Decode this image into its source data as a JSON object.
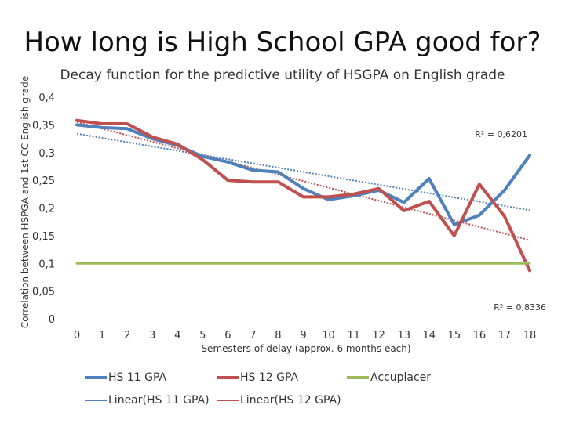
{
  "page": {
    "title": "How long is High School GPA good for?"
  },
  "chart_data": {
    "type": "line",
    "title": "Decay function for the predictive utility of HSGPA on English grade",
    "xlabel": "Semesters of delay (approx. 6 months each)",
    "ylabel": "Correlation between HSPGA and 1st CC English grade",
    "ylim": [
      0,
      0.4
    ],
    "xlim": [
      0,
      18
    ],
    "y_ticks": [
      "0",
      "0,05",
      "0,1",
      "0,15",
      "0,2",
      "0,25",
      "0,3",
      "0,35",
      "0,4"
    ],
    "x": [
      0,
      1,
      2,
      3,
      4,
      5,
      6,
      7,
      8,
      9,
      10,
      11,
      12,
      13,
      14,
      15,
      16,
      17,
      18
    ],
    "series": [
      {
        "name": "HS 11 GPA",
        "color": "#4f81bd",
        "values": [
          0.35,
          0.345,
          0.343,
          0.325,
          0.313,
          0.293,
          0.283,
          0.268,
          0.265,
          0.235,
          0.215,
          0.222,
          0.232,
          0.21,
          0.253,
          0.17,
          0.187,
          0.232,
          0.295
        ]
      },
      {
        "name": "HS 12 GPA",
        "color": "#c0504d",
        "values": [
          0.358,
          0.352,
          0.352,
          0.328,
          0.315,
          0.287,
          0.25,
          0.247,
          0.247,
          0.22,
          0.22,
          0.225,
          0.235,
          0.195,
          0.212,
          0.15,
          0.243,
          0.185,
          0.087
        ]
      },
      {
        "name": "Accuplacer",
        "color": "#9bbb59",
        "values": [
          0.1,
          0.1,
          0.1,
          0.1,
          0.1,
          0.1,
          0.1,
          0.1,
          0.1,
          0.1,
          0.1,
          0.1,
          0.1,
          0.1,
          0.1,
          0.1,
          0.1,
          0.1,
          0.1
        ]
      }
    ],
    "trendlines": [
      {
        "name": "Linear(HS 11 GPA)",
        "color": "#4f81bd",
        "start": [
          0,
          0.334
        ],
        "end": [
          18,
          0.196
        ],
        "r2_label": "R² = 0,6201"
      },
      {
        "name": "Linear(HS 12 GPA)",
        "color": "#c0504d",
        "start": [
          0,
          0.355
        ],
        "end": [
          18,
          0.142
        ],
        "r2_label": "R² = 0,8336"
      }
    ],
    "legend": {
      "position": "bottom",
      "items": [
        {
          "label": "HS 11 GPA",
          "color": "#4f81bd",
          "style": "solid"
        },
        {
          "label": "HS 12 GPA",
          "color": "#c0504d",
          "style": "solid"
        },
        {
          "label": "Accuplacer",
          "color": "#9bbb59",
          "style": "solid"
        },
        {
          "label": "Linear(HS 11 GPA)",
          "color": "#4f81bd",
          "style": "trend"
        },
        {
          "label": "Linear(HS 12 GPA)",
          "color": "#c0504d",
          "style": "trend"
        }
      ]
    }
  }
}
